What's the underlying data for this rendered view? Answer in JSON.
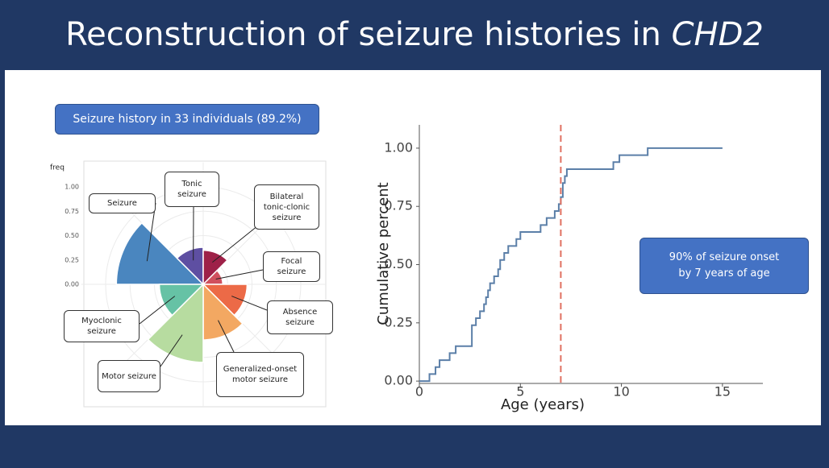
{
  "slide": {
    "title": "Reconstruction of seizure histories in",
    "title_italic": "CHD2",
    "badge": "Seizure history in 33 individuals (89.2%)",
    "callout": "90% of seizure onset by 7 years of age"
  },
  "chart_data": [
    {
      "type": "rose",
      "y_label": "freq",
      "categories": [
        "Seizure",
        "Tonic seizure",
        "Bilateral tonic-clonic seizure",
        "Focal seizure",
        "Absence seizure",
        "Generalized-onset motor seizure",
        "Motor seizure",
        "Myoclonic seizure"
      ],
      "values": [
        0.89,
        0.38,
        0.35,
        0.2,
        0.45,
        0.57,
        0.8,
        0.45
      ],
      "colors": [
        "#4a86bf",
        "#5e4fa2",
        "#9e2148",
        "#d0505e",
        "#ec6a47",
        "#f3a862",
        "#b7dca0",
        "#66c2a5"
      ],
      "ylim": [
        0,
        1
      ],
      "yticks": [
        {
          "value": 0,
          "label": "0.00"
        },
        {
          "value": 0.25,
          "label": "0.25"
        },
        {
          "value": 0.5,
          "label": "0.50"
        },
        {
          "value": 0.75,
          "label": "0.75"
        },
        {
          "value": 1,
          "label": "1.00"
        }
      ]
    },
    {
      "type": "line",
      "step": true,
      "x_label": "Age (years)",
      "y_label": "Cumulative percent",
      "color": "#5b7fa8",
      "x": [
        0,
        0.5,
        0.8,
        1.0,
        1.5,
        1.8,
        2.6,
        2.8,
        3.0,
        3.2,
        3.3,
        3.4,
        3.5,
        3.7,
        3.9,
        4.0,
        4.2,
        4.4,
        4.8,
        5.0,
        6.0,
        6.3,
        6.7,
        6.9,
        7.0,
        7.1,
        7.2,
        7.3,
        9.6,
        9.9,
        11.3,
        15
      ],
      "values": [
        0,
        0.03,
        0.06,
        0.09,
        0.12,
        0.15,
        0.24,
        0.27,
        0.3,
        0.33,
        0.36,
        0.39,
        0.42,
        0.45,
        0.48,
        0.52,
        0.55,
        0.58,
        0.61,
        0.64,
        0.67,
        0.7,
        0.73,
        0.76,
        0.79,
        0.85,
        0.88,
        0.91,
        0.94,
        0.97,
        1.0,
        1.0
      ],
      "xlim": [
        0,
        17
      ],
      "ylim": [
        -0.01,
        1.1
      ],
      "xticks": [
        0,
        5,
        10,
        15
      ],
      "yticks": [
        {
          "value": 0,
          "label": "0.00"
        },
        {
          "value": 0.25,
          "label": "0.25"
        },
        {
          "value": 0.5,
          "label": "0.50"
        },
        {
          "value": 0.75,
          "label": "0.75"
        },
        {
          "value": 1,
          "label": "1.00"
        }
      ],
      "vline": {
        "value": 7,
        "color": "#e07060"
      }
    }
  ]
}
